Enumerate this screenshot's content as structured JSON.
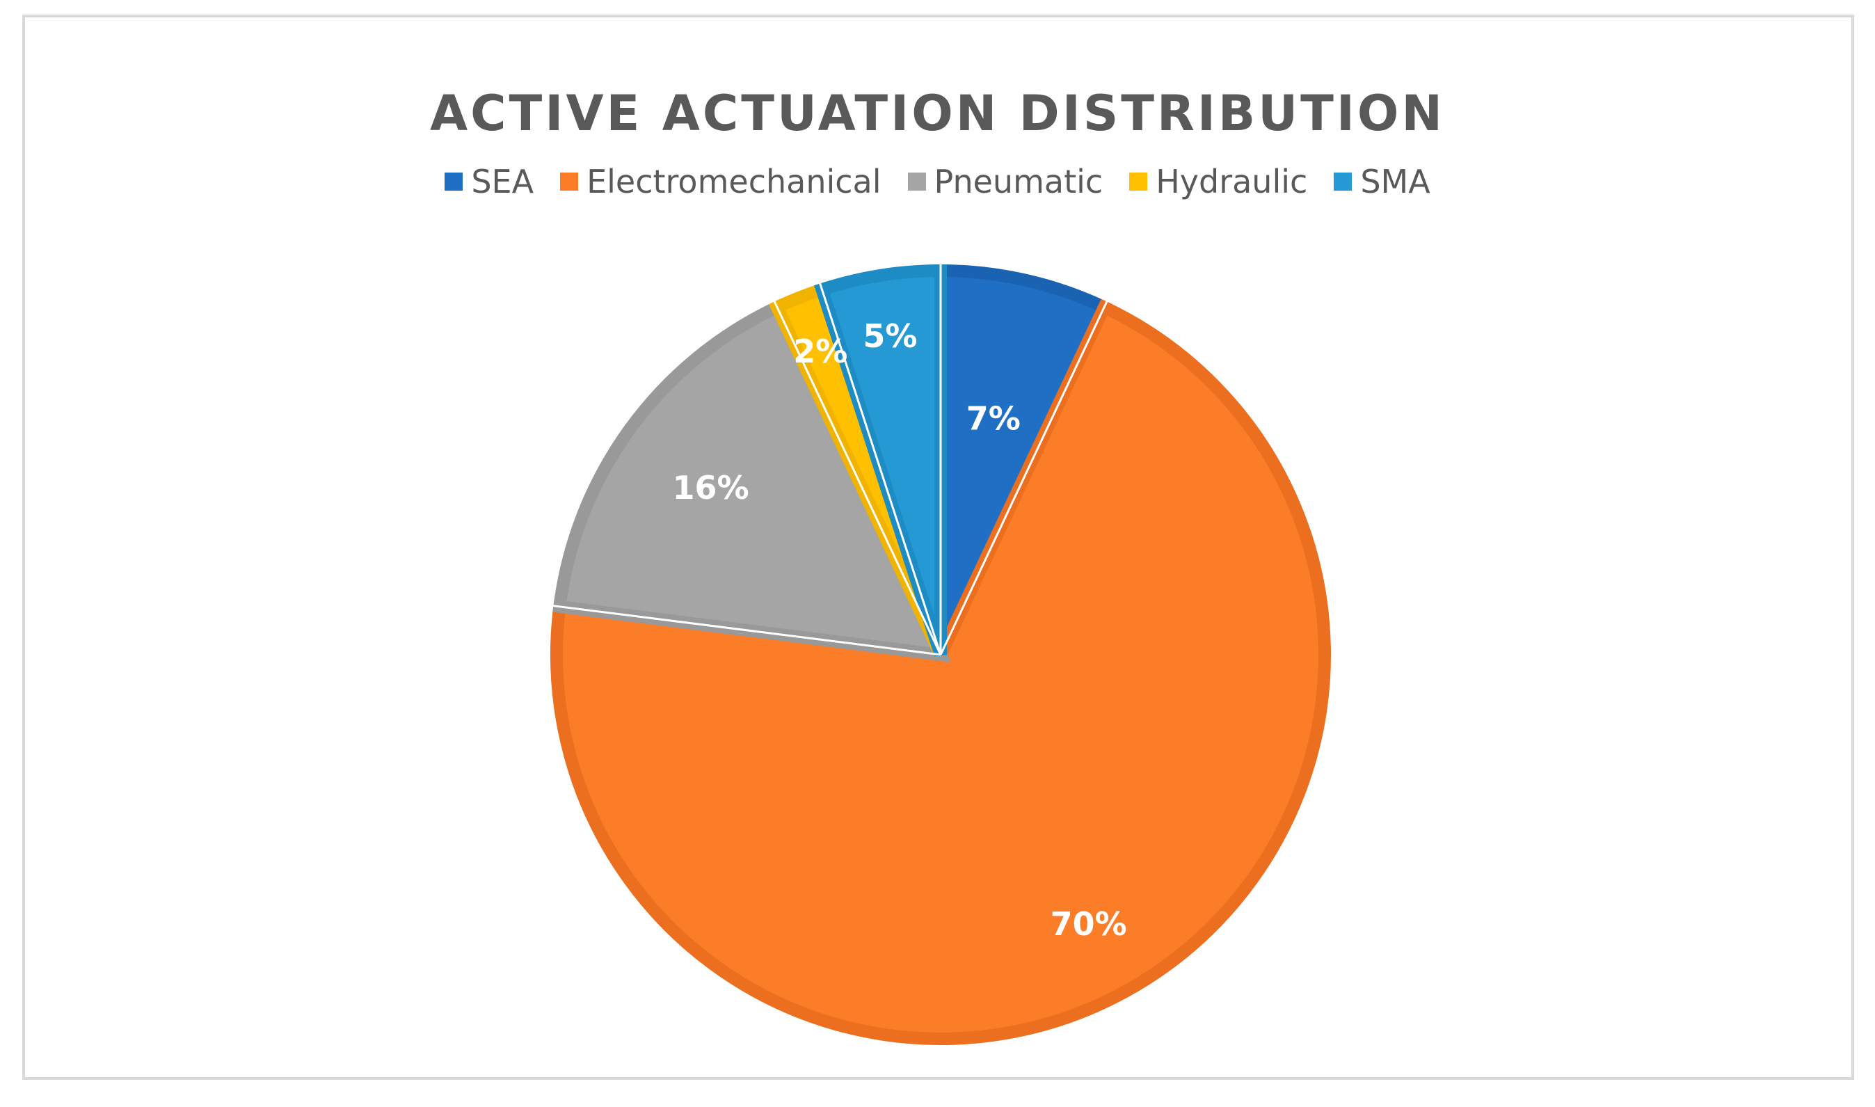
{
  "chart_data": {
    "type": "pie",
    "title": "ACTIVE ACTUATION DISTRIBUTION",
    "legend_position": "top",
    "categories": [
      "SEA",
      "Electromechanical",
      "Pneumatic",
      "Hydraulic",
      "SMA"
    ],
    "values": [
      7,
      70,
      16,
      2,
      5
    ],
    "data_labels": [
      "7%",
      "70%",
      "16%",
      "2%",
      "5%"
    ],
    "colors": [
      "#1f6fc5",
      "#fb7d27",
      "#a5a5a5",
      "#ffc000",
      "#2599d4"
    ],
    "border_colors": [
      "#1a63b3",
      "#ec6e1f",
      "#999999",
      "#f0b300",
      "#1e8cc4"
    ]
  }
}
